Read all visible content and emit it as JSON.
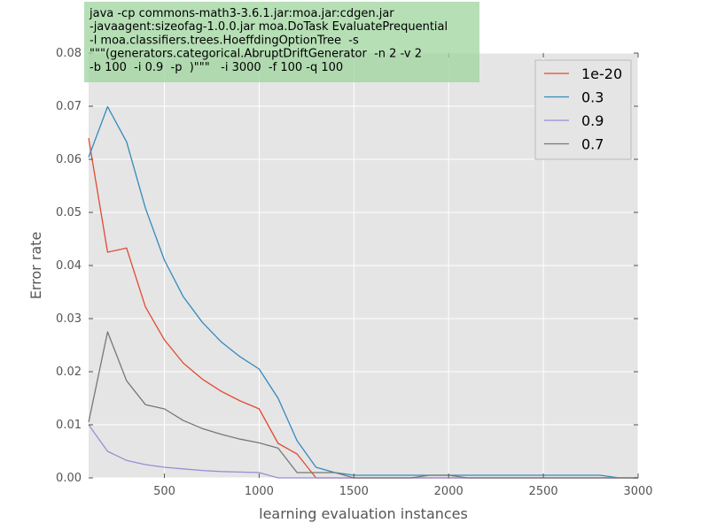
{
  "chart_data": {
    "type": "line",
    "title": "",
    "xlabel": "learning evaluation instances",
    "ylabel": "Error rate",
    "xlim": [
      100,
      3000
    ],
    "ylim": [
      0,
      0.08
    ],
    "xticks": [
      500,
      1000,
      1500,
      2000,
      2500,
      3000
    ],
    "yticks": [
      0.0,
      0.01,
      0.02,
      0.03,
      0.04,
      0.05,
      0.06,
      0.07,
      0.08
    ],
    "ytick_labels": [
      "0.00",
      "0.01",
      "0.02",
      "0.03",
      "0.04",
      "0.05",
      "0.06",
      "0.07",
      "0.08"
    ],
    "grid": true,
    "legend_position": "top-right",
    "annotation_lines": [
      "java -cp commons-math3-3.6.1.jar:moa.jar:cdgen.jar",
      "-javaagent:sizeofag-1.0.0.jar moa.DoTask EvaluatePrequential",
      "-l moa.classifiers.trees.HoeffdingOptionTree  -s",
      "\"\"\"(generators.categorical.AbruptDriftGenerator  -n 2 -v 2",
      "-b 100  -i 0.9  -p  )\"\"\"   -i 3000  -f 100 -q 100"
    ],
    "x": [
      100,
      200,
      300,
      400,
      500,
      600,
      700,
      800,
      900,
      1000,
      1100,
      1200,
      1300,
      1400,
      1500,
      1600,
      1700,
      1800,
      1900,
      2000,
      2100,
      2200,
      2300,
      2400,
      2500,
      2600,
      2700,
      2800,
      2900,
      3000
    ],
    "series": [
      {
        "name": "1e-20",
        "color": "#e24a33",
        "values": [
          0.064,
          0.0425,
          0.0433,
          0.0322,
          0.026,
          0.0216,
          0.0186,
          0.0163,
          0.0145,
          0.013,
          0.0065,
          0.0045,
          0.0,
          0.0,
          0.0,
          0.0,
          0.0,
          0.0,
          0.0,
          0.0,
          0.0,
          0.0,
          0.0,
          0.0,
          0.0,
          0.0,
          0.0,
          0.0,
          0.0,
          0.0
        ]
      },
      {
        "name": "0.3",
        "color": "#348abd",
        "values": [
          0.0604,
          0.0699,
          0.0633,
          0.0508,
          0.041,
          0.0341,
          0.0293,
          0.0256,
          0.0228,
          0.0205,
          0.015,
          0.007,
          0.002,
          0.001,
          0.0005,
          0.0005,
          0.0005,
          0.0005,
          0.0005,
          0.0005,
          0.0005,
          0.0005,
          0.0005,
          0.0005,
          0.0005,
          0.0005,
          0.0005,
          0.0005,
          0.0,
          0.0
        ]
      },
      {
        "name": "0.9",
        "color": "#988ed5",
        "values": [
          0.01,
          0.005,
          0.0033,
          0.0025,
          0.002,
          0.0017,
          0.0014,
          0.0012,
          0.0011,
          0.001,
          0.0,
          0.0,
          0.0,
          0.0,
          0.0,
          0.0,
          0.0,
          0.0,
          0.0,
          0.0,
          0.0,
          0.0,
          0.0,
          0.0,
          0.0,
          0.0,
          0.0,
          0.0,
          0.0,
          0.0
        ]
      },
      {
        "name": "0.7",
        "color": "#777777",
        "values": [
          0.0105,
          0.0275,
          0.0183,
          0.0138,
          0.013,
          0.0108,
          0.0093,
          0.0082,
          0.0073,
          0.0066,
          0.0056,
          0.001,
          0.001,
          0.001,
          0.0,
          0.0,
          0.0,
          0.0,
          0.0005,
          0.0005,
          0.0,
          0.0,
          0.0,
          0.0,
          0.0,
          0.0,
          0.0,
          0.0,
          0.0,
          0.0
        ]
      }
    ]
  }
}
